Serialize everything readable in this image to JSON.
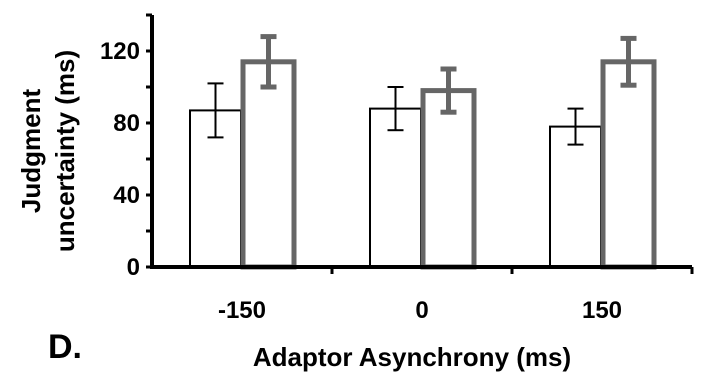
{
  "panel_label": "D.",
  "colors": {
    "bar_a_fill": "#ffffff",
    "bar_a_stroke": "#000000",
    "bar_b_fill": "#ffffff",
    "bar_b_stroke": "#666666",
    "axis": "#000000"
  },
  "chart_data": {
    "type": "bar",
    "categories": [
      "-150",
      "0",
      "150"
    ],
    "series": [
      {
        "values": [
          87,
          88,
          78
        ],
        "errors": [
          15,
          12,
          10
        ]
      },
      {
        "values": [
          114,
          98,
          114
        ],
        "errors": [
          14,
          12,
          13
        ]
      }
    ],
    "xlabel": "Adaptor Asynchrony (ms)",
    "ylabel_lines": [
      "Judgment",
      "uncertainty (ms)"
    ],
    "ylim": [
      0,
      140
    ],
    "yticks": [
      "0",
      "40",
      "80",
      "120"
    ],
    "grid": false,
    "legend": "none"
  }
}
